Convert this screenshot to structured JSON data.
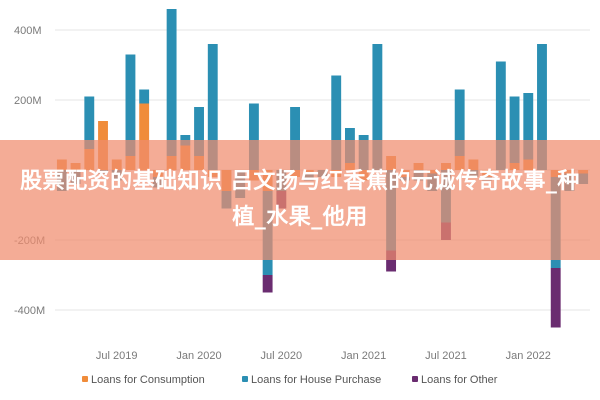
{
  "banner": {
    "text": "股票配资的基础知识 吕文扬与红香蕉的元诚传奇故事_种植_水果_他用"
  },
  "colors": {
    "consumption": "#f08c3a",
    "house": "#2b8fb3",
    "other": "#6a2c70",
    "banner_bg": "#f08c6e"
  },
  "chart_data": {
    "type": "bar",
    "stacked": true,
    "ylim": [
      -450,
      450
    ],
    "yticks": [
      {
        "value": 400,
        "label": "400M"
      },
      {
        "value": 200,
        "label": "200M"
      },
      {
        "value": -200,
        "label": "-200M"
      },
      {
        "value": -400,
        "label": "-400M"
      }
    ],
    "xticks": [
      {
        "index": 4,
        "label": "Jul 2019"
      },
      {
        "index": 10,
        "label": "Jan 2020"
      },
      {
        "index": 16,
        "label": "Jul 2020"
      },
      {
        "index": 22,
        "label": "Jan 2021"
      },
      {
        "index": 28,
        "label": "Jul 2021"
      },
      {
        "index": 34,
        "label": "Jan 2022"
      }
    ],
    "series": [
      {
        "name": "Loans for Consumption",
        "values": [
          30,
          20,
          60,
          140,
          30,
          40,
          190,
          -20,
          40,
          70,
          40,
          -20,
          -60,
          0,
          -30,
          -60,
          0,
          -20,
          -10,
          0,
          -20,
          20,
          -30,
          0,
          40,
          -20,
          20,
          -10,
          20,
          40,
          30,
          -20,
          0,
          20,
          30,
          0,
          -20,
          -10,
          -10
        ]
      },
      {
        "name": "Loans for House Purchase",
        "values": [
          -60,
          -40,
          150,
          -10,
          -30,
          290,
          40,
          -30,
          420,
          30,
          140,
          360,
          -50,
          -80,
          190,
          -240,
          -60,
          180,
          -20,
          -20,
          270,
          100,
          100,
          360,
          -230,
          -10,
          -30,
          -50,
          -150,
          190,
          -20,
          -10,
          310,
          190,
          190,
          360,
          -260,
          -50,
          -30
        ]
      },
      {
        "name": "Loans for Other",
        "values": [
          0,
          0,
          0,
          0,
          0,
          0,
          0,
          0,
          0,
          0,
          0,
          0,
          0,
          0,
          0,
          -50,
          -50,
          0,
          0,
          0,
          0,
          0,
          0,
          0,
          -60,
          0,
          0,
          0,
          -50,
          0,
          0,
          0,
          0,
          0,
          0,
          0,
          -170,
          0,
          0
        ]
      }
    ]
  },
  "legend": [
    {
      "label": "Loans for Consumption",
      "color": "#f08c3a"
    },
    {
      "label": "Loans for House Purchase",
      "color": "#2b8fb3"
    },
    {
      "label": "Loans for Other",
      "color": "#6a2c70"
    }
  ]
}
